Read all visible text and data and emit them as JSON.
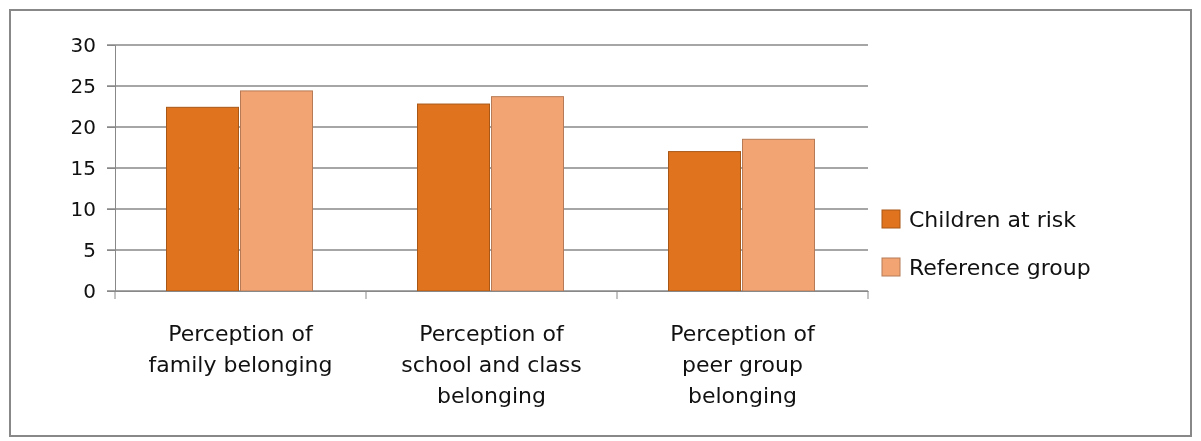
{
  "chart_data": {
    "type": "bar",
    "categories": [
      "Perception of family belonging",
      "Perception of school and class belonging",
      "Perception of peer group belonging"
    ],
    "series": [
      {
        "name": "Children at risk",
        "color": "#e0741e",
        "values": [
          22.4,
          22.8,
          17.0
        ]
      },
      {
        "name": "Reference group",
        "color": "#f2a473",
        "values": [
          24.4,
          23.7,
          18.5
        ]
      }
    ],
    "ylim": [
      0,
      30
    ],
    "yticks": [
      0,
      5,
      10,
      15,
      20,
      25,
      30
    ],
    "grid": "y",
    "legend": "right"
  }
}
